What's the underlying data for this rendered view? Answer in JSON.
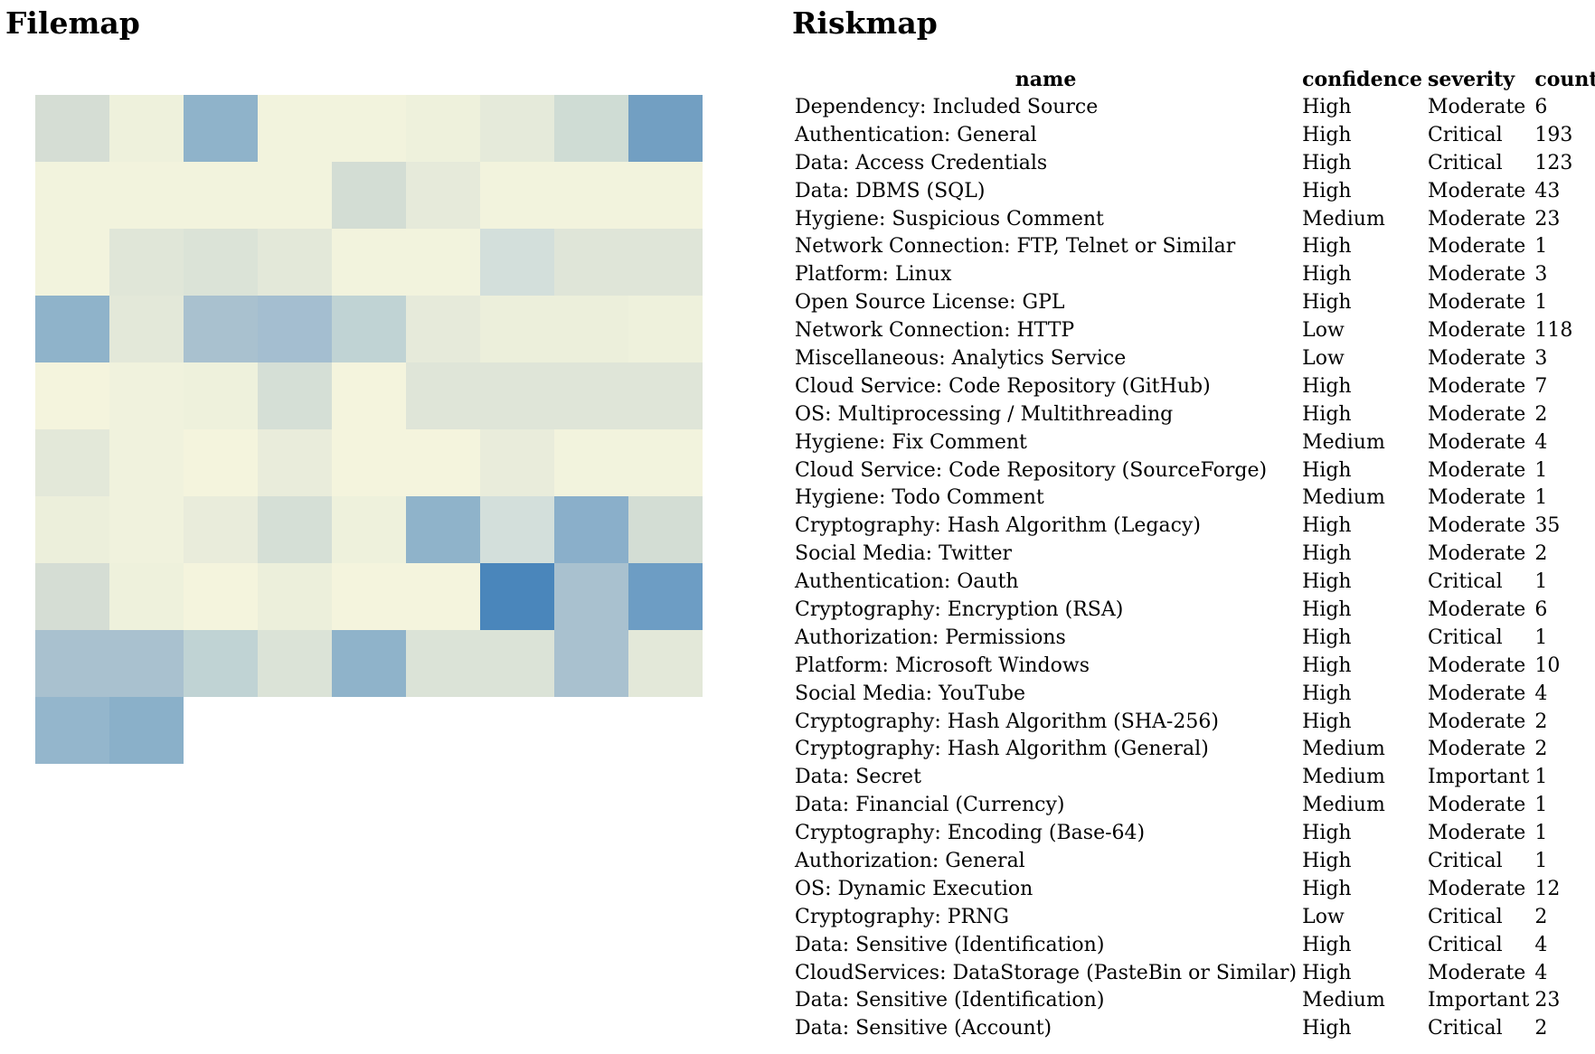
{
  "filemap": {
    "title": "Filemap",
    "columns": 9,
    "cells": [
      "#d5ddd4",
      "#eef1dc",
      "#8fb3ca",
      "#f2f3dd",
      "#f2f3dd",
      "#eef1dc",
      "#e5eada",
      "#cfdcd4",
      "#729fc2",
      "#f2f3dd",
      "#f2f3dd",
      "#f2f3dd",
      "#f2f3dd",
      "#d3ddd4",
      "#e6eada",
      "#f2f3dd",
      "#f2f3dd",
      "#f2f3dd",
      "#f2f3dd",
      "#e0e6d8",
      "#dbe3d7",
      "#e3e8d9",
      "#f2f3dd",
      "#f2f3dd",
      "#d3dfdb",
      "#dfe5d8",
      "#dfe5d8",
      "#8fb3ca",
      "#e3e8d9",
      "#a9c1cf",
      "#a4bed0",
      "#c0d3d4",
      "#e6eada",
      "#ecefdb",
      "#ecefdb",
      "#eef1dc",
      "#f4f4dd",
      "#f0f2dd",
      "#eef1dc",
      "#d5dfd6",
      "#f4f4dd",
      "#dfe5d8",
      "#dfe5d8",
      "#dfe5d8",
      "#dfe5d8",
      "#e3e8d9",
      "#f0f2dd",
      "#f4f4dd",
      "#e9ecdb",
      "#f4f4dd",
      "#f4f4dd",
      "#e9ecdb",
      "#f2f3dd",
      "#f2f3dd",
      "#ecefdb",
      "#f0f2dd",
      "#e9ecdb",
      "#d5dfd6",
      "#eef1dc",
      "#8fb3ca",
      "#d3dfdb",
      "#8aafca",
      "#d3ddd4",
      "#d5ddd4",
      "#eef1dc",
      "#f4f4dd",
      "#ecefdb",
      "#f4f4dd",
      "#f4f4dd",
      "#4a86bb",
      "#a9c1cf",
      "#6d9dc4",
      "#a9c1cf",
      "#a9c1cf",
      "#c0d3d4",
      "#dbe3d7",
      "#8fb3ca",
      "#dbe3d7",
      "#dbe3d7",
      "#a9c1cf",
      "#e3e8d9",
      "#94b6cc",
      "#8ab0c9"
    ]
  },
  "riskmap": {
    "title": "Riskmap",
    "headers": {
      "name": "name",
      "confidence": "confidence",
      "severity": "severity",
      "count": "count"
    },
    "rows": [
      {
        "name": "Dependency: Included Source",
        "confidence": "High",
        "severity": "Moderate",
        "count": "6"
      },
      {
        "name": "Authentication: General",
        "confidence": "High",
        "severity": "Critical",
        "count": "193"
      },
      {
        "name": "Data: Access Credentials",
        "confidence": "High",
        "severity": "Critical",
        "count": "123"
      },
      {
        "name": "Data: DBMS (SQL)",
        "confidence": "High",
        "severity": "Moderate",
        "count": "43"
      },
      {
        "name": "Hygiene: Suspicious Comment",
        "confidence": "Medium",
        "severity": "Moderate",
        "count": "23"
      },
      {
        "name": "Network Connection: FTP, Telnet or Similar",
        "confidence": "High",
        "severity": "Moderate",
        "count": "1"
      },
      {
        "name": "Platform: Linux",
        "confidence": "High",
        "severity": "Moderate",
        "count": "3"
      },
      {
        "name": "Open Source License: GPL",
        "confidence": "High",
        "severity": "Moderate",
        "count": "1"
      },
      {
        "name": "Network Connection: HTTP",
        "confidence": "Low",
        "severity": "Moderate",
        "count": "118"
      },
      {
        "name": "Miscellaneous: Analytics Service",
        "confidence": "Low",
        "severity": "Moderate",
        "count": "3"
      },
      {
        "name": "Cloud Service: Code Repository (GitHub)",
        "confidence": "High",
        "severity": "Moderate",
        "count": "7"
      },
      {
        "name": "OS: Multiprocessing / Multithreading",
        "confidence": "High",
        "severity": "Moderate",
        "count": "2"
      },
      {
        "name": "Hygiene: Fix Comment",
        "confidence": "Medium",
        "severity": "Moderate",
        "count": "4"
      },
      {
        "name": "Cloud Service: Code Repository (SourceForge)",
        "confidence": "High",
        "severity": "Moderate",
        "count": "1"
      },
      {
        "name": "Hygiene: Todo Comment",
        "confidence": "Medium",
        "severity": "Moderate",
        "count": "1"
      },
      {
        "name": "Cryptography: Hash Algorithm (Legacy)",
        "confidence": "High",
        "severity": "Moderate",
        "count": "35"
      },
      {
        "name": "Social Media: Twitter",
        "confidence": "High",
        "severity": "Moderate",
        "count": "2"
      },
      {
        "name": "Authentication: Oauth",
        "confidence": "High",
        "severity": "Critical",
        "count": "1"
      },
      {
        "name": "Cryptography: Encryption (RSA)",
        "confidence": "High",
        "severity": "Moderate",
        "count": "6"
      },
      {
        "name": "Authorization: Permissions",
        "confidence": "High",
        "severity": "Critical",
        "count": "1"
      },
      {
        "name": "Platform: Microsoft Windows",
        "confidence": "High",
        "severity": "Moderate",
        "count": "10"
      },
      {
        "name": "Social Media: YouTube",
        "confidence": "High",
        "severity": "Moderate",
        "count": "4"
      },
      {
        "name": "Cryptography: Hash Algorithm (SHA-256)",
        "confidence": "High",
        "severity": "Moderate",
        "count": "2"
      },
      {
        "name": "Cryptography: Hash Algorithm (General)",
        "confidence": "Medium",
        "severity": "Moderate",
        "count": "2"
      },
      {
        "name": "Data: Secret",
        "confidence": "Medium",
        "severity": "Important",
        "count": "1"
      },
      {
        "name": "Data: Financial (Currency)",
        "confidence": "Medium",
        "severity": "Moderate",
        "count": "1"
      },
      {
        "name": "Cryptography: Encoding (Base-64)",
        "confidence": "High",
        "severity": "Moderate",
        "count": "1"
      },
      {
        "name": "Authorization: General",
        "confidence": "High",
        "severity": "Critical",
        "count": "1"
      },
      {
        "name": "OS: Dynamic Execution",
        "confidence": "High",
        "severity": "Moderate",
        "count": "12"
      },
      {
        "name": "Cryptography: PRNG",
        "confidence": "Low",
        "severity": "Critical",
        "count": "2"
      },
      {
        "name": "Data: Sensitive (Identification)",
        "confidence": "High",
        "severity": "Critical",
        "count": "4"
      },
      {
        "name": "CloudServices: DataStorage (PasteBin or Similar)",
        "confidence": "High",
        "severity": "Moderate",
        "count": "4"
      },
      {
        "name": "Data: Sensitive (Identification)",
        "confidence": "Medium",
        "severity": "Important",
        "count": "23"
      },
      {
        "name": "Data: Sensitive (Account)",
        "confidence": "High",
        "severity": "Critical",
        "count": "2"
      }
    ]
  }
}
